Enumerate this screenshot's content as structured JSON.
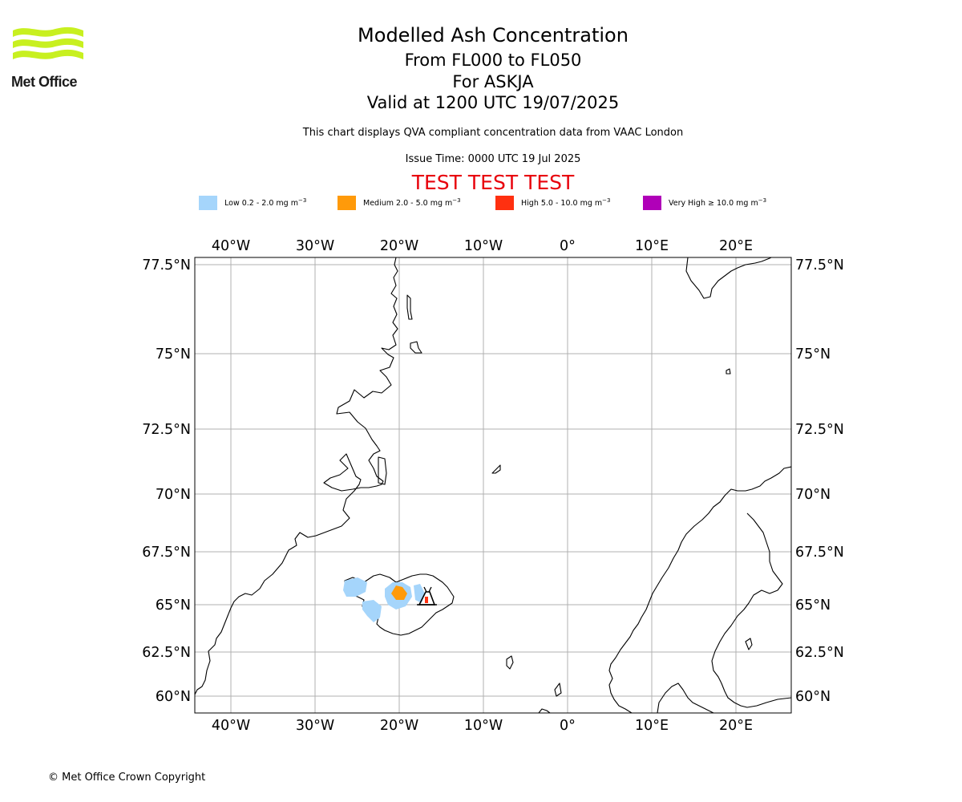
{
  "logo": {
    "text": "Met Office",
    "color": "#c8f020"
  },
  "title": "Modelled Ash Concentration",
  "subtitle_levels": "From FL000 to FL050",
  "subtitle_volcano": "For ASKJA",
  "subtitle_valid": "Valid at 1200 UTC 19/07/2025",
  "note": "This chart displays QVA compliant concentration data from VAAC London",
  "issue_time": "Issue Time: 0000 UTC 19 Jul 2025",
  "test_banner": "TEST TEST TEST",
  "legend": [
    {
      "label": "Low 0.2 - 2.0 mg m",
      "sup": "−3",
      "color": "#a5d5fb"
    },
    {
      "label": "Medium 2.0 - 5.0 mg m",
      "sup": "−3",
      "color": "#ff9a0a"
    },
    {
      "label": "High 5.0 - 10.0 mg m",
      "sup": "−3",
      "color": "#ff3010"
    },
    {
      "label": "Very High  ≥  10.0 mg m",
      "sup": "−3",
      "color": "#b000b8"
    }
  ],
  "map": {
    "lon_ticks": [
      "40°W",
      "30°W",
      "20°W",
      "10°W",
      "0°",
      "10°E",
      "20°E"
    ],
    "lat_ticks": [
      "77.5°N",
      "75°N",
      "72.5°N",
      "70°N",
      "67.5°N",
      "65°N",
      "62.5°N",
      "60°N"
    ],
    "volcano": "ASKJA"
  },
  "copyright": "© Met Office Crown Copyright"
}
